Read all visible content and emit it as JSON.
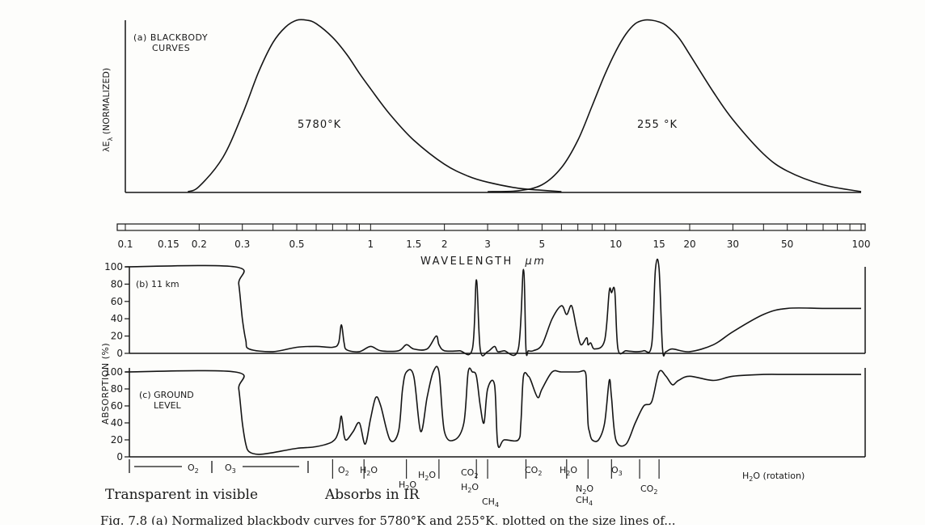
{
  "figure": {
    "caption_partial": "Fig. 7.8  (a) Normalized blackbody curves for 5780°K and 255°K, plotted on the size lines of..."
  },
  "chart_data": [
    {
      "type": "line",
      "title": "(a) BLACKBODY",
      "title_line2": "CURVES",
      "ylabel": "λE",
      "ylabel_sub": "λ",
      "ylabel_suffix": " (NORMALIZED)",
      "xscale": "log",
      "xlim": [
        0.1,
        100
      ],
      "series": [
        {
          "name": "5780°K",
          "x": [
            0.18,
            0.2,
            0.25,
            0.3,
            0.35,
            0.4,
            0.45,
            0.5,
            0.55,
            0.6,
            0.7,
            0.8,
            0.9,
            1.0,
            1.2,
            1.5,
            2,
            2.5,
            3,
            4,
            5,
            6
          ],
          "y": [
            0,
            0.03,
            0.2,
            0.45,
            0.7,
            0.87,
            0.96,
            1.0,
            1.0,
            0.98,
            0.9,
            0.8,
            0.69,
            0.6,
            0.45,
            0.3,
            0.16,
            0.09,
            0.055,
            0.02,
            0.008,
            0.0
          ]
        },
        {
          "name": "255°K",
          "x": [
            3,
            4,
            5,
            6,
            7,
            8,
            9,
            10,
            11,
            12,
            13,
            14,
            15,
            16,
            18,
            20,
            25,
            30,
            40,
            50,
            70,
            100
          ],
          "y": [
            0,
            0.005,
            0.04,
            0.14,
            0.3,
            0.5,
            0.68,
            0.82,
            0.92,
            0.98,
            1.0,
            1.0,
            0.99,
            0.97,
            0.9,
            0.8,
            0.58,
            0.42,
            0.22,
            0.12,
            0.04,
            0.0
          ]
        }
      ],
      "labels": [
        "5780°K",
        "255 °K"
      ]
    },
    {
      "type": "line",
      "xlabel": "WAVELENGTH",
      "xlabel_unit": "μm",
      "xticks": [
        "0.1",
        "0.15",
        "0.2",
        "0.3",
        "0.5",
        "1",
        "1.5",
        "2",
        "3",
        "5",
        "10",
        "15",
        "20",
        "30",
        "50",
        "100"
      ]
    },
    {
      "type": "line",
      "title": "(b) 11 km",
      "ylabel": "ABSORPTION (%)",
      "xscale": "log",
      "ylim": [
        0,
        100
      ],
      "yticks": [
        "100",
        "80",
        "60",
        "40",
        "20",
        "0"
      ],
      "series": [
        {
          "name": "",
          "x": [
            0.1,
            0.28,
            0.29,
            0.3,
            0.31,
            0.32,
            0.4,
            0.5,
            0.6,
            0.7,
            0.74,
            0.76,
            0.78,
            0.8,
            0.9,
            1.0,
            1.1,
            1.3,
            1.4,
            1.5,
            1.7,
            1.85,
            1.9,
            2.0,
            2.3,
            2.6,
            2.7,
            2.8,
            3.0,
            3.2,
            3.3,
            3.5,
            4.0,
            4.2,
            4.3,
            4.4,
            4.6,
            5.0,
            5.5,
            6.0,
            6.3,
            6.6,
            6.9,
            7.2,
            7.6,
            7.7,
            7.9,
            8.2,
            9.0,
            9.4,
            9.6,
            9.9,
            10.2,
            11,
            12,
            13,
            14,
            14.5,
            15,
            15.5,
            16,
            17,
            20,
            25,
            30,
            40,
            50,
            70,
            100
          ],
          "y": [
            100,
            100,
            80,
            40,
            15,
            5,
            2,
            7,
            8,
            7,
            12,
            33,
            12,
            4,
            2,
            8,
            3,
            3,
            10,
            5,
            5,
            20,
            10,
            3,
            3,
            5,
            85,
            4,
            2,
            8,
            2,
            3,
            5,
            97,
            5,
            3,
            3,
            10,
            40,
            55,
            45,
            55,
            30,
            10,
            18,
            10,
            12,
            5,
            15,
            72,
            70,
            72,
            5,
            3,
            2,
            3,
            10,
            97,
            98,
            5,
            2,
            5,
            2,
            10,
            25,
            45,
            52,
            52,
            52
          ]
        }
      ]
    },
    {
      "type": "line",
      "title": "(c) GROUND",
      "title_line2": "LEVEL",
      "xscale": "log",
      "ylim": [
        0,
        100
      ],
      "yticks": [
        "100",
        "80",
        "60",
        "40",
        "20",
        "0"
      ],
      "series": [
        {
          "name": "",
          "x": [
            0.1,
            0.28,
            0.29,
            0.3,
            0.31,
            0.32,
            0.35,
            0.4,
            0.5,
            0.6,
            0.7,
            0.74,
            0.76,
            0.78,
            0.8,
            0.85,
            0.9,
            0.95,
            1.0,
            1.05,
            1.1,
            1.2,
            1.3,
            1.35,
            1.4,
            1.5,
            1.6,
            1.7,
            1.8,
            1.9,
            2.0,
            2.2,
            2.4,
            2.5,
            2.6,
            2.7,
            2.8,
            2.9,
            3.0,
            3.2,
            3.3,
            3.5,
            4.0,
            4.1,
            4.2,
            4.4,
            4.5,
            4.8,
            5.0,
            5.5,
            6.0,
            7.0,
            7.5,
            7.6,
            7.7,
            7.8,
            8.0,
            8.5,
            9.0,
            9.4,
            9.6,
            10.0,
            11,
            12,
            13,
            14,
            15,
            16,
            17,
            18,
            20,
            25,
            30,
            40,
            50,
            70,
            100
          ],
          "y": [
            100,
            100,
            80,
            40,
            15,
            6,
            3,
            5,
            10,
            12,
            18,
            30,
            48,
            25,
            20,
            30,
            40,
            15,
            45,
            70,
            60,
            20,
            30,
            80,
            100,
            95,
            30,
            70,
            100,
            100,
            30,
            20,
            40,
            100,
            100,
            95,
            60,
            40,
            80,
            85,
            15,
            20,
            20,
            40,
            95,
            95,
            90,
            70,
            80,
            100,
            100,
            100,
            100,
            80,
            40,
            30,
            20,
            20,
            40,
            90,
            70,
            20,
            15,
            40,
            60,
            65,
            100,
            95,
            85,
            90,
            95,
            90,
            95,
            97,
            97,
            97,
            97
          ]
        }
      ]
    }
  ],
  "band_labels": [
    {
      "text": "O",
      "sub": "2"
    },
    {
      "text": "O",
      "sub": "3"
    },
    {
      "text": "O",
      "sub": "2"
    },
    {
      "text": "H",
      "sub": "2",
      "text2": "O"
    },
    {
      "text": "H",
      "sub": "2",
      "text2": "O"
    },
    {
      "text": "H",
      "sub": "2",
      "text2": "O"
    },
    {
      "text": "CO",
      "sub": "2"
    },
    {
      "text": "H",
      "sub": "2",
      "text2": "O"
    },
    {
      "text": "CH",
      "sub": "4"
    },
    {
      "text": "CO",
      "sub": "2"
    },
    {
      "text": "H",
      "sub": "2",
      "text2": "O"
    },
    {
      "text": "N",
      "sub": "2",
      "text2": "O"
    },
    {
      "text": "CH",
      "sub": "4"
    },
    {
      "text": "O",
      "sub": "3"
    },
    {
      "text": "CO",
      "sub": "2"
    },
    {
      "text": "H",
      "sub": "2",
      "text2": "O (rotation)"
    }
  ],
  "annotations": {
    "transparent": "Transparent in visible",
    "absorbs": "Absorbs in IR"
  }
}
